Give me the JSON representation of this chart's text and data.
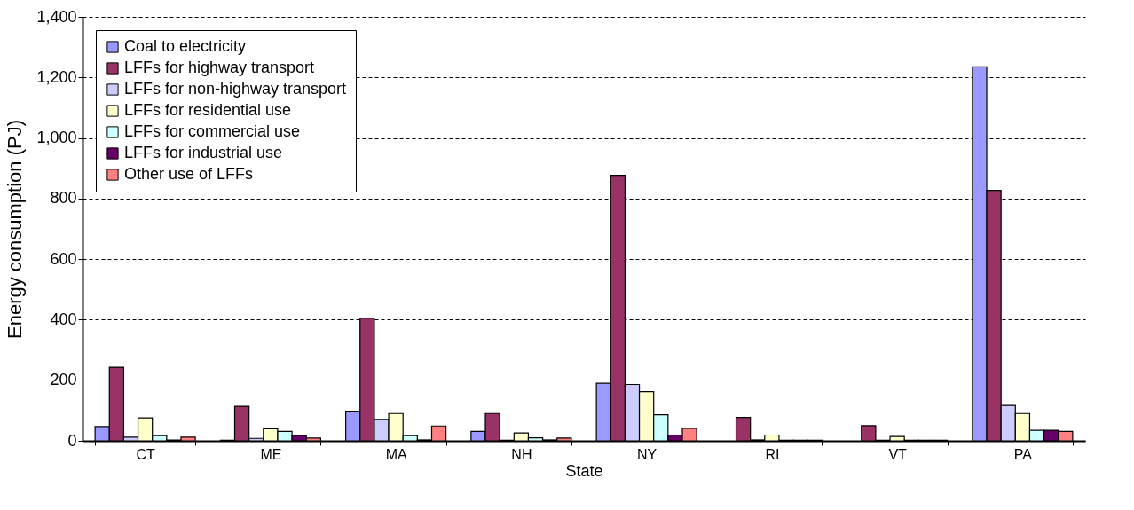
{
  "chart_data": {
    "type": "bar",
    "xlabel": "State",
    "ylabel": "Energy consumption (PJ)",
    "categories": [
      "CT",
      "ME",
      "MA",
      "NH",
      "NY",
      "RI",
      "VT",
      "PA"
    ],
    "series": [
      {
        "name": "Coal to electricity",
        "color": "#9999ff",
        "values": [
          47,
          2,
          98,
          31,
          190,
          null,
          null,
          1235
        ]
      },
      {
        "name": "LFFs for highway transport",
        "color": "#993366",
        "values": [
          243,
          114,
          405,
          90,
          877,
          77,
          50,
          827
        ]
      },
      {
        "name": "LFFs for non-highway transport",
        "color": "#ccccff",
        "values": [
          12,
          8,
          71,
          2,
          186,
          3,
          2,
          117
        ]
      },
      {
        "name": "LFFs for residential use",
        "color": "#ffffcc",
        "values": [
          76,
          40,
          90,
          26,
          162,
          19,
          14,
          90
        ]
      },
      {
        "name": "LFFs for commercial use",
        "color": "#ccffff",
        "values": [
          17,
          31,
          17,
          10,
          86,
          2,
          2,
          35
        ]
      },
      {
        "name": "LFFs for industrial use",
        "color": "#660066",
        "values": [
          3,
          18,
          3,
          3,
          19,
          2,
          2,
          35
        ]
      },
      {
        "name": "Other use of LFFs",
        "color": "#ff8080",
        "values": [
          12,
          9,
          49,
          9,
          41,
          2,
          2,
          31
        ]
      }
    ],
    "ylim": [
      0,
      1400
    ],
    "yticks": [
      {
        "value": 0,
        "label": "0"
      },
      {
        "value": 200,
        "label": "200"
      },
      {
        "value": 400,
        "label": "400"
      },
      {
        "value": 600,
        "label": "600"
      },
      {
        "value": 800,
        "label": "800"
      },
      {
        "value": 1000,
        "label": "1,000"
      },
      {
        "value": 1200,
        "label": "1,200"
      },
      {
        "value": 1400,
        "label": "1,400"
      }
    ],
    "grid": "y",
    "legend": "top left"
  }
}
